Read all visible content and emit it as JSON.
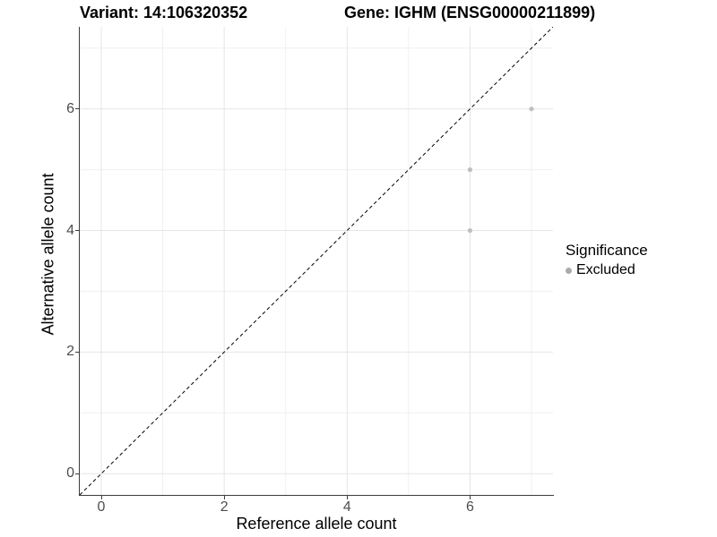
{
  "chart_data": {
    "type": "scatter",
    "title_left": "Variant: 14:106320352",
    "title_right": "Gene: IGHM (ENSG00000211899)",
    "xlabel": "Reference allele count",
    "ylabel": "Alternative allele count",
    "xticks": [
      0,
      2,
      4,
      6
    ],
    "yticks": [
      0,
      2,
      4,
      6
    ],
    "xlim": [
      -0.35,
      7.35
    ],
    "ylim": [
      -0.35,
      7.35
    ],
    "grid": {
      "major_x": [
        0,
        2,
        4,
        6
      ],
      "minor_x": [
        1,
        3,
        5,
        7
      ],
      "major_y": [
        0,
        2,
        4,
        6
      ],
      "minor_y": [
        1,
        3,
        5,
        7
      ]
    },
    "identity_line": {
      "equation": "y = x",
      "style": "dashed",
      "color": "#000000"
    },
    "series": [
      {
        "name": "Excluded",
        "color": "#bfbfbf",
        "point_radius": 2.6,
        "points": [
          {
            "x": 7,
            "y": 6
          },
          {
            "x": 6,
            "y": 5
          },
          {
            "x": 6,
            "y": 4
          }
        ]
      }
    ],
    "legend": {
      "title": "Significance",
      "position": "right",
      "entries": [
        {
          "label": "Excluded",
          "color": "#ababab"
        }
      ]
    }
  },
  "colors": {
    "background": "#ffffff",
    "axis_line": "#3d3d3d",
    "tick_label": "#4d4d4d",
    "grid_major": "#e5e5e5",
    "grid_minor": "#f0f0f0"
  }
}
